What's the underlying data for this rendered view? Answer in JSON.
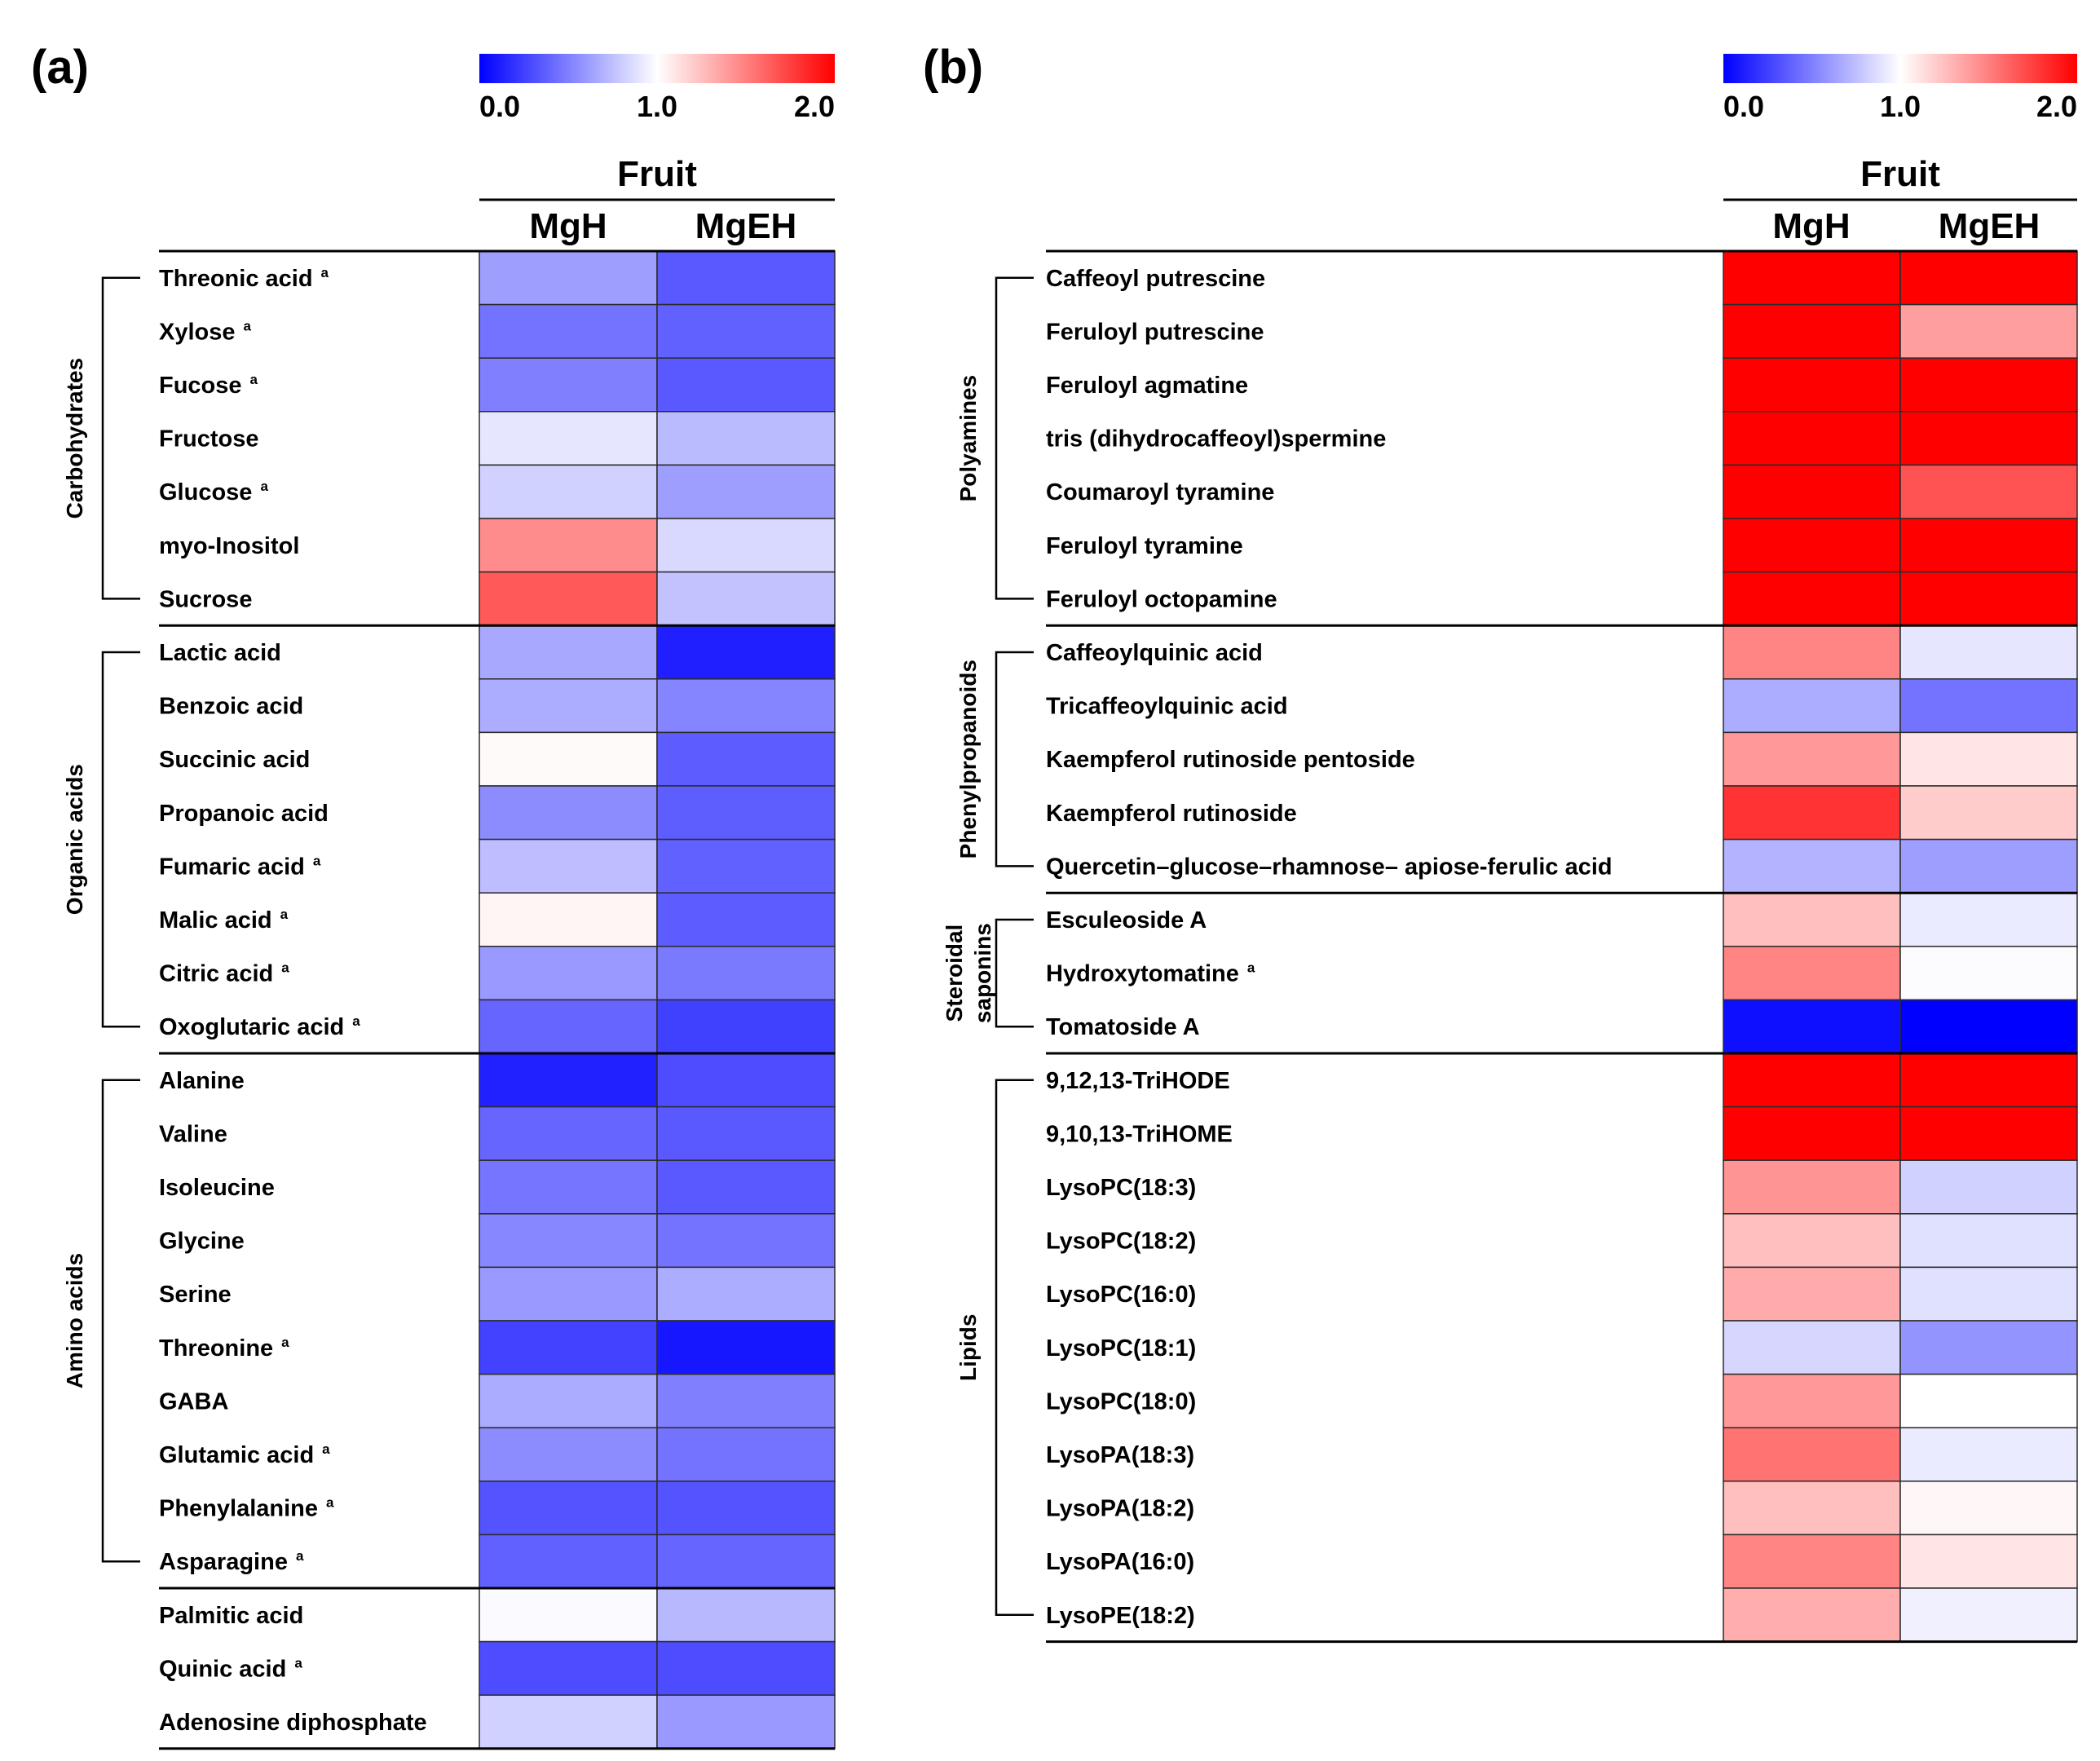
{
  "chart_data": [
    {
      "type": "heatmap",
      "panel": "(a)",
      "color_scale": {
        "ticks": [
          "0.0",
          "1.0",
          "2.0"
        ],
        "range": [
          0.0,
          2.0
        ],
        "colors": {
          "low": "#0000ff",
          "mid": "#ffffff",
          "high": "#ff0000"
        }
      },
      "column_group_label": "Fruit",
      "columns": [
        "MgH",
        "MgEH"
      ],
      "rows": [
        {
          "label": "Threonic acid",
          "superscript": "a",
          "values": [
            0.62,
            0.35
          ]
        },
        {
          "label": "Xylose",
          "superscript": "a",
          "values": [
            0.45,
            0.38
          ]
        },
        {
          "label": "Fucose",
          "superscript": "a",
          "values": [
            0.5,
            0.35
          ]
        },
        {
          "label": "Fructose",
          "superscript": "",
          "values": [
            0.9,
            0.73
          ]
        },
        {
          "label": "Glucose",
          "superscript": "a",
          "values": [
            0.82,
            0.62
          ]
        },
        {
          "label": "myo-Inositol",
          "superscript": "",
          "values": [
            1.45,
            0.85
          ]
        },
        {
          "label": "Sucrose",
          "superscript": "",
          "values": [
            1.65,
            0.76
          ]
        },
        {
          "label": "Lactic acid",
          "superscript": "",
          "values": [
            0.66,
            0.12
          ]
        },
        {
          "label": "Benzoic acid",
          "superscript": "",
          "values": [
            0.68,
            0.52
          ]
        },
        {
          "label": "Succinic acid",
          "superscript": "",
          "values": [
            1.02,
            0.36
          ]
        },
        {
          "label": "Propanoic acid",
          "superscript": "",
          "values": [
            0.55,
            0.37
          ]
        },
        {
          "label": "Fumaric acid",
          "superscript": "a",
          "values": [
            0.74,
            0.38
          ]
        },
        {
          "label": "Malic acid",
          "superscript": "a",
          "values": [
            1.04,
            0.36
          ]
        },
        {
          "label": "Citric acid",
          "superscript": "a",
          "values": [
            0.6,
            0.48
          ]
        },
        {
          "label": "Oxoglutaric acid",
          "superscript": "a",
          "values": [
            0.4,
            0.25
          ]
        },
        {
          "label": "Alanine",
          "superscript": "",
          "values": [
            0.13,
            0.3
          ]
        },
        {
          "label": "Valine",
          "superscript": "",
          "values": [
            0.4,
            0.35
          ]
        },
        {
          "label": "Isoleucine",
          "superscript": "",
          "values": [
            0.46,
            0.35
          ]
        },
        {
          "label": "Glycine",
          "superscript": "",
          "values": [
            0.53,
            0.45
          ]
        },
        {
          "label": "Serine",
          "superscript": "",
          "values": [
            0.6,
            0.68
          ]
        },
        {
          "label": "Threonine",
          "superscript": "a",
          "values": [
            0.26,
            0.09
          ]
        },
        {
          "label": "GABA",
          "superscript": "",
          "values": [
            0.67,
            0.5
          ]
        },
        {
          "label": "Glutamic acid",
          "superscript": "a",
          "values": [
            0.55,
            0.45
          ]
        },
        {
          "label": "Phenylalanine",
          "superscript": "a",
          "values": [
            0.33,
            0.33
          ]
        },
        {
          "label": "Asparagine",
          "superscript": "a",
          "values": [
            0.38,
            0.4
          ]
        },
        {
          "label": "Palmitic acid",
          "superscript": "",
          "values": [
            0.98,
            0.72
          ]
        },
        {
          "label": "Quinic acid",
          "superscript": "a",
          "values": [
            0.3,
            0.3
          ]
        },
        {
          "label": "Adenosine diphosphate",
          "superscript": "",
          "values": [
            0.82,
            0.6
          ]
        }
      ],
      "row_groups": [
        {
          "label": "Carbohydrates",
          "start": 0,
          "end": 6
        },
        {
          "label": "Organic acids",
          "start": 7,
          "end": 14
        },
        {
          "label": "Amino acids",
          "start": 15,
          "end": 24
        }
      ]
    },
    {
      "type": "heatmap",
      "panel": "(b)",
      "color_scale": {
        "ticks": [
          "0.0",
          "1.0",
          "2.0"
        ],
        "range": [
          0.0,
          2.0
        ],
        "colors": {
          "low": "#0000ff",
          "mid": "#ffffff",
          "high": "#ff0000"
        }
      },
      "column_group_label": "Fruit",
      "columns": [
        "MgH",
        "MgEH"
      ],
      "rows": [
        {
          "label": "Caffeoyl putrescine",
          "superscript": "",
          "values": [
            2.0,
            2.0
          ]
        },
        {
          "label": "Feruloyl putrescine",
          "superscript": "",
          "values": [
            2.0,
            1.38
          ]
        },
        {
          "label": "Feruloyl agmatine",
          "superscript": "",
          "values": [
            2.0,
            2.0
          ]
        },
        {
          "label": "tris (dihydrocaffeoyl)spermine",
          "superscript": "",
          "values": [
            2.0,
            2.0
          ]
        },
        {
          "label": "Coumaroyl tyramine",
          "superscript": "",
          "values": [
            2.0,
            1.68
          ]
        },
        {
          "label": "Feruloyl tyramine",
          "superscript": "",
          "values": [
            2.0,
            2.0
          ]
        },
        {
          "label": "Feruloyl octopamine",
          "superscript": "",
          "values": [
            2.0,
            2.0
          ]
        },
        {
          "label": "Caffeoylquinic acid",
          "superscript": "",
          "values": [
            1.48,
            0.9
          ]
        },
        {
          "label": "Tricaffeoylquinic acid",
          "superscript": "",
          "values": [
            0.68,
            0.45
          ]
        },
        {
          "label": "Kaempferol rutinoside pentoside",
          "superscript": "",
          "values": [
            1.4,
            1.1
          ]
        },
        {
          "label": "Kaempferol rutinoside",
          "superscript": "",
          "values": [
            1.8,
            1.2
          ]
        },
        {
          "label": "Quercetin–glucose–rhamnose– apiose-ferulic acid",
          "superscript": "",
          "values": [
            0.7,
            0.62
          ]
        },
        {
          "label": "Esculeoside A",
          "superscript": "",
          "values": [
            1.25,
            0.92
          ]
        },
        {
          "label": "Hydroxytomatine",
          "superscript": "a",
          "values": [
            1.48,
            0.99
          ]
        },
        {
          "label": "Tomatoside A",
          "superscript": "",
          "values": [
            0.06,
            0.0
          ]
        },
        {
          "label": "9,12,13-TriHODE",
          "superscript": "",
          "values": [
            2.0,
            2.0
          ]
        },
        {
          "label": "9,10,13-TriHOME",
          "superscript": "",
          "values": [
            2.0,
            2.0
          ]
        },
        {
          "label": "LysoPC(18:3)",
          "superscript": "",
          "values": [
            1.42,
            0.82
          ]
        },
        {
          "label": "LysoPC(18:2)",
          "superscript": "",
          "values": [
            1.25,
            0.88
          ]
        },
        {
          "label": "LysoPC(16:0)",
          "superscript": "",
          "values": [
            1.33,
            0.88
          ]
        },
        {
          "label": "LysoPC(18:1)",
          "superscript": "",
          "values": [
            0.84,
            0.58
          ]
        },
        {
          "label": "LysoPC(18:0)",
          "superscript": "",
          "values": [
            1.4,
            1.0
          ]
        },
        {
          "label": "LysoPA(18:3)",
          "superscript": "",
          "values": [
            1.55,
            0.92
          ]
        },
        {
          "label": "LysoPA(18:2)",
          "superscript": "",
          "values": [
            1.25,
            1.03
          ]
        },
        {
          "label": "LysoPA(16:0)",
          "superscript": "",
          "values": [
            1.48,
            1.1
          ]
        },
        {
          "label": "LysoPE(18:2)",
          "superscript": "",
          "values": [
            1.32,
            0.94
          ]
        }
      ],
      "row_groups": [
        {
          "label": "Polyamines",
          "start": 0,
          "end": 6
        },
        {
          "label": "Phenylpropanoids",
          "start": 7,
          "end": 11
        },
        {
          "label": "Steroidal saponins",
          "label_lines": [
            "Steroidal",
            "saponins"
          ],
          "start": 12,
          "end": 14
        },
        {
          "label": "Lipids",
          "start": 15,
          "end": 25
        }
      ]
    }
  ]
}
